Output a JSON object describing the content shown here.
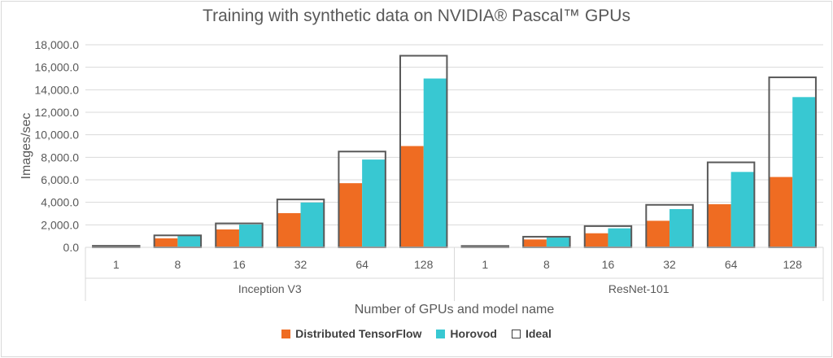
{
  "chart_data": {
    "type": "bar",
    "title": "Training with synthetic data on NVIDIA® Pascal™ GPUs",
    "xlabel": "Number of GPUs and model name",
    "ylabel": "Images/sec",
    "ylim": [
      0,
      18000
    ],
    "yticks": [
      "0.0",
      "2,000.0",
      "4,000.0",
      "6,000.0",
      "8,000.0",
      "10,000.0",
      "12,000.0",
      "14,000.0",
      "16,000.0",
      "18,000.0"
    ],
    "grid": true,
    "legend_position": "bottom",
    "groups": [
      {
        "name": "Inception V3",
        "categories": [
          "1",
          "8",
          "16",
          "32",
          "64",
          "128"
        ]
      },
      {
        "name": "ResNet-101",
        "categories": [
          "1",
          "8",
          "16",
          "32",
          "64",
          "128"
        ]
      }
    ],
    "series": [
      {
        "name": "Distributed TensorFlow",
        "color": "#ef6c22",
        "values": [
          133,
          800,
          1590,
          3040,
          5700,
          9000,
          118,
          700,
          1250,
          2360,
          3830,
          6250
        ]
      },
      {
        "name": "Horovod",
        "color": "#38c8d2",
        "values": [
          133,
          1010,
          2030,
          3980,
          7800,
          15000,
          118,
          870,
          1690,
          3400,
          6700,
          13350
        ]
      },
      {
        "name": "Ideal",
        "color": "#595959",
        "style": "outline",
        "values": [
          133,
          1064,
          2128,
          4256,
          8512,
          17024,
          118,
          944,
          1888,
          3776,
          7552,
          15104
        ]
      }
    ]
  }
}
